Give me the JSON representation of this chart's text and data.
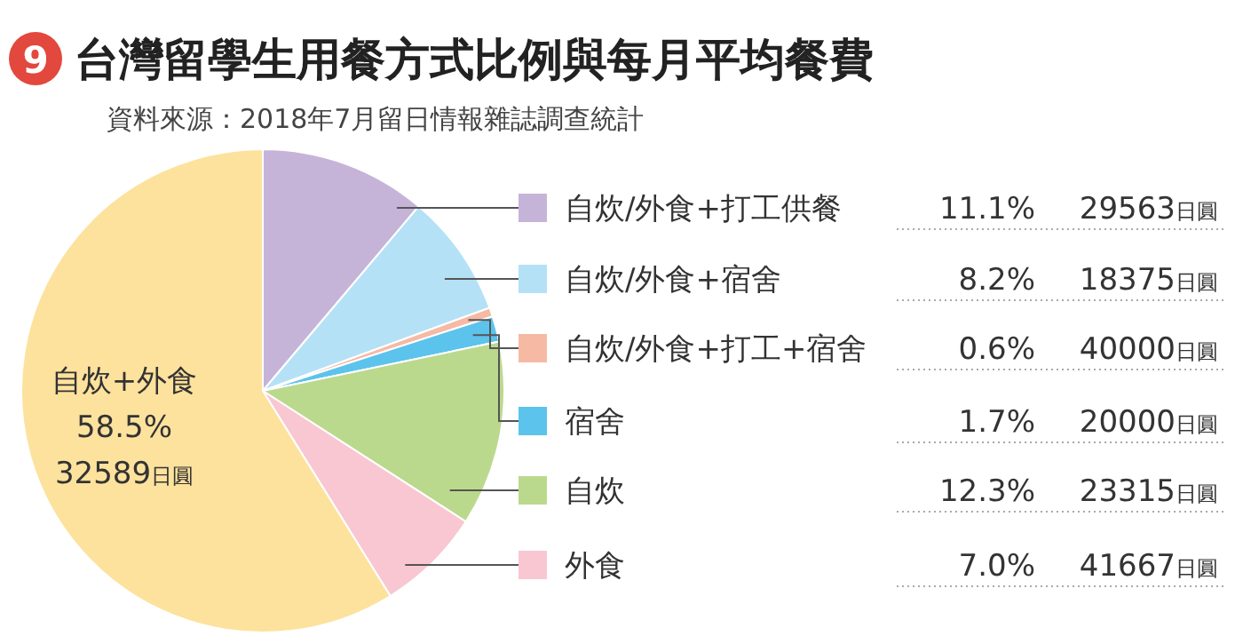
{
  "chart_data": {
    "type": "pie",
    "title": "台灣留學生用餐方式比例與每月平均餐費",
    "subtitle": "資料來源：2018年7月留日情報雜誌調查統計",
    "categories": [
      "自炊/外食+打工供餐",
      "自炊/外食+宿舍",
      "自炊/外食+打工+宿舍",
      "宿舍",
      "自炊",
      "外食",
      "自炊+外食"
    ],
    "values": [
      11.1,
      8.2,
      0.6,
      1.7,
      12.3,
      7.0,
      58.5
    ],
    "colors": [
      "#c6b4d8",
      "#b5e1f6",
      "#f6baa4",
      "#5cc3ed",
      "#bbd98d",
      "#f8c7d2",
      "#fde29d"
    ],
    "value_labels": [
      "11.1%",
      "8.2%",
      "0.6%",
      "1.7%",
      "12.3%",
      "7.0%",
      "58.5%"
    ],
    "legend": "right",
    "annotations": [
      "9",
      "29563日圓",
      "18375日圓",
      "40000日圓",
      "20000日圓",
      "23315日圓",
      "41667日圓",
      "32589日圓"
    ]
  }
}
